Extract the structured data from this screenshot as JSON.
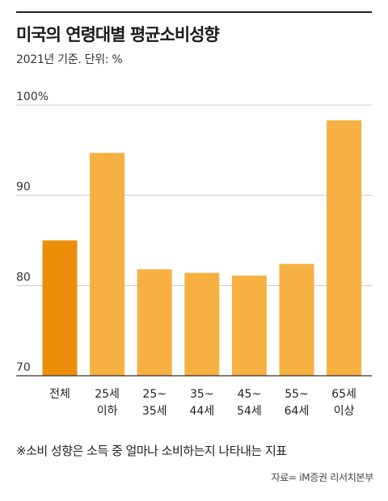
{
  "header": {
    "title": "미국의 연령대별 평균소비성향",
    "subtitle": "2021년 기준. 단위: %"
  },
  "footer": {
    "note": "※소비 성향은 소득 중 얼마나 소비하는지 나타내는 지표",
    "source": "자료= iM증권 리서치본부"
  },
  "colors": {
    "highlight": "#ED8E0B",
    "bar": "#F6B142",
    "grid": "#C8C8C8",
    "axis": "#333333"
  },
  "chart_data": {
    "type": "bar",
    "title": "미국의 연령대별 평균소비성향",
    "subtitle": "2021년 기준. 단위: %",
    "categories": [
      [
        "전체"
      ],
      [
        "25세",
        "이하"
      ],
      [
        "25~",
        "35세"
      ],
      [
        "35~",
        "44세"
      ],
      [
        "45~",
        "54세"
      ],
      [
        "55~",
        "64세"
      ],
      [
        "65세",
        "이상"
      ]
    ],
    "values": [
      85.0,
      94.7,
      81.8,
      81.4,
      81.1,
      82.4,
      98.3
    ],
    "highlight_index": 0,
    "ylim": [
      70,
      100
    ],
    "yticks": [
      70,
      80,
      90,
      100
    ],
    "ytick_labels": [
      "70",
      "80",
      "90",
      "100%"
    ],
    "grid": true,
    "legend": "none"
  }
}
